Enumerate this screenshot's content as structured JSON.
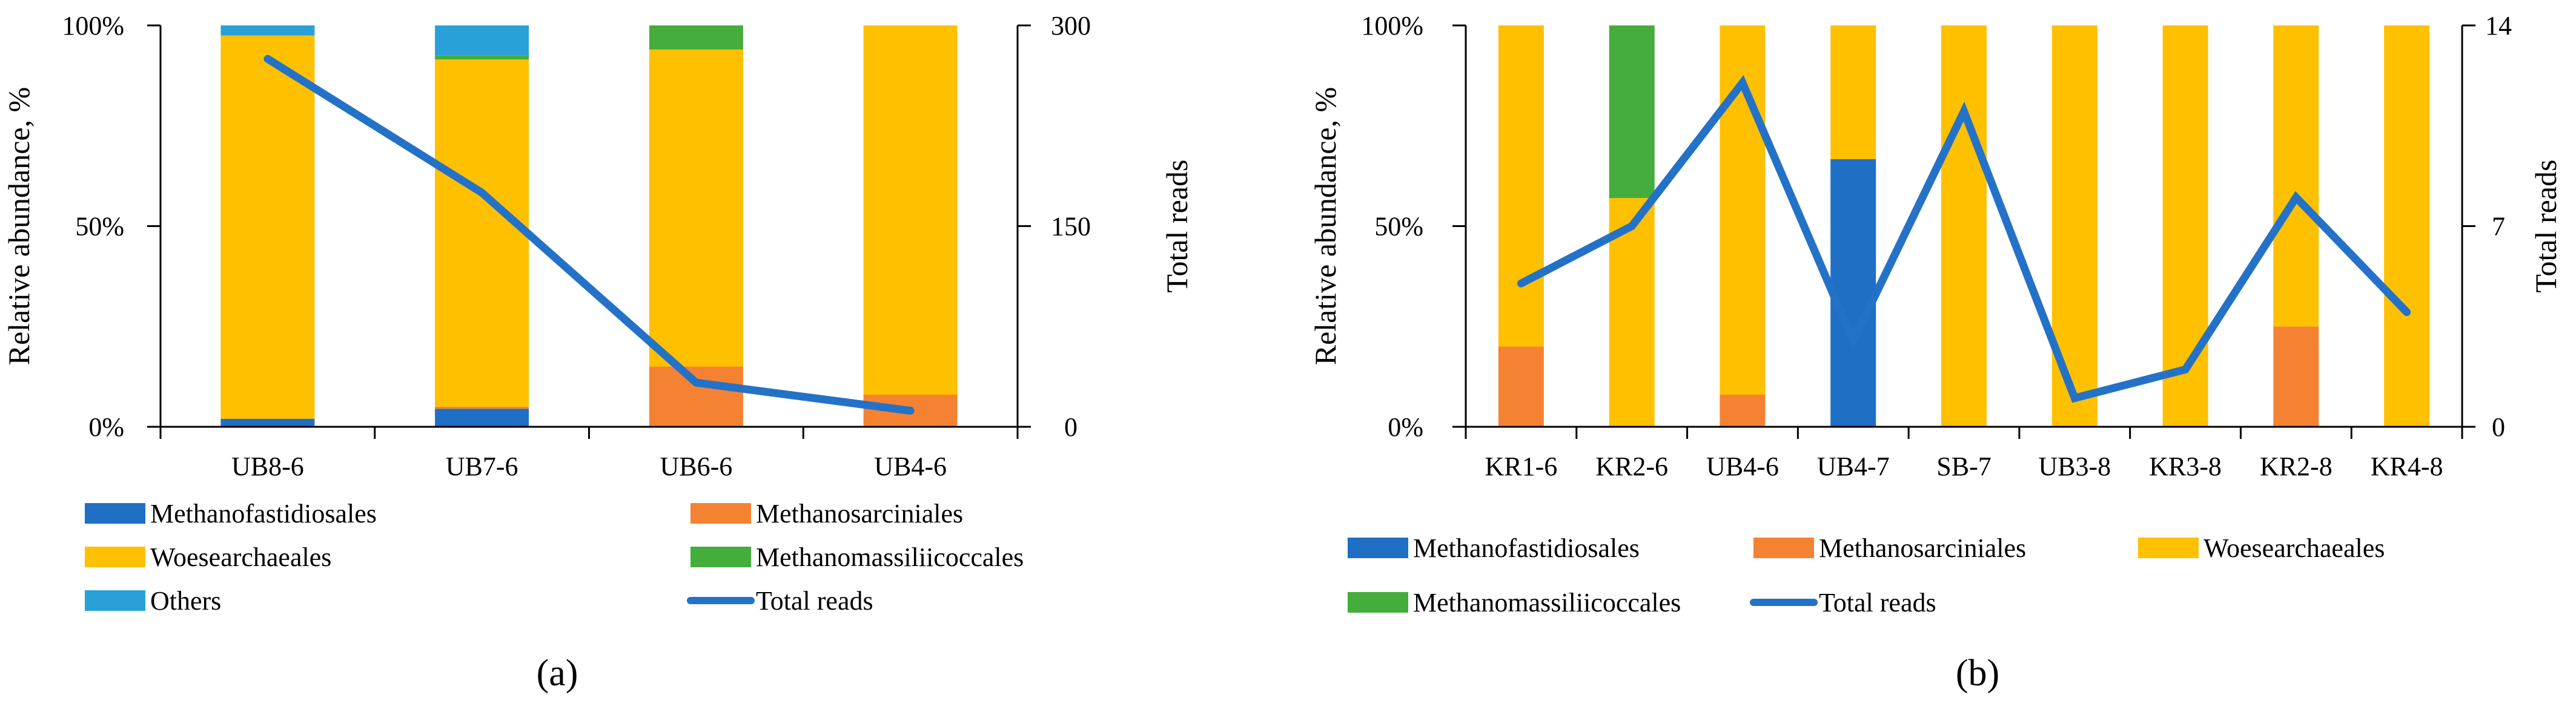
{
  "colors": {
    "Methanofastidiosales": "#1f6fc5",
    "Methanosarciniales": "#f58232",
    "Woesearchaeales": "#ffc000",
    "Methanomassiliicoccales": "#44ad3c",
    "Others": "#2aa0d8",
    "Total reads": "#2472c8"
  },
  "chart_data": [
    {
      "type": "bar",
      "stacked": true,
      "caption": "(a)",
      "categories": [
        "UB8-6",
        "UB7-6",
        "UB6-6",
        "UB4-6"
      ],
      "series": [
        {
          "name": "Methanofastidiosales",
          "values": [
            2,
            4.5,
            0,
            0
          ]
        },
        {
          "name": "Methanosarciniales",
          "values": [
            0,
            0.5,
            15,
            8
          ]
        },
        {
          "name": "Woesearchaeales",
          "values": [
            95.5,
            86.5,
            79,
            92
          ]
        },
        {
          "name": "Methanomassiliicoccales",
          "values": [
            0,
            1,
            6,
            0
          ]
        },
        {
          "name": "Others",
          "values": [
            2.5,
            7.5,
            0,
            0
          ]
        }
      ],
      "line": {
        "name": "Total reads",
        "values": [
          275,
          175,
          33,
          12
        ]
      },
      "ylabel": "Relative abundance, %",
      "ylabel_right": "Total reads",
      "y_ticks": [
        "0%",
        "50%",
        "100%"
      ],
      "y_right_ticks": [
        "0",
        "150",
        "300"
      ],
      "ylim": [
        0,
        100
      ],
      "ylim_right": [
        0,
        300
      ],
      "legend_position": "bottom",
      "grid": false
    },
    {
      "type": "bar",
      "stacked": true,
      "caption": "(b)",
      "categories": [
        "KR1-6",
        "KR2-6",
        "UB4-6",
        "UB4-7",
        "SB-7",
        "UB3-8",
        "KR3-8",
        "KR2-8",
        "KR4-8"
      ],
      "series": [
        {
          "name": "Methanofastidiosales",
          "values": [
            0,
            0,
            0,
            66.7,
            0,
            0,
            0,
            0,
            0
          ]
        },
        {
          "name": "Methanosarciniales",
          "values": [
            20,
            0,
            8,
            0,
            0,
            0,
            0,
            25,
            0
          ]
        },
        {
          "name": "Woesearchaeales",
          "values": [
            80,
            57,
            92,
            33.3,
            100,
            100,
            100,
            75,
            100
          ]
        },
        {
          "name": "Methanomassiliicoccales",
          "values": [
            0,
            43,
            0,
            0,
            0,
            0,
            0,
            0,
            0
          ]
        }
      ],
      "line": {
        "name": "Total reads",
        "values": [
          5,
          7,
          12,
          3,
          11,
          1,
          2,
          8,
          4
        ]
      },
      "ylabel": "Relative abundance, %",
      "ylabel_right": "Total reads",
      "y_ticks": [
        "0%",
        "50%",
        "100%"
      ],
      "y_right_ticks": [
        "0",
        "7",
        "14"
      ],
      "ylim": [
        0,
        100
      ],
      "ylim_right": [
        0,
        14
      ],
      "legend_position": "bottom",
      "grid": false
    }
  ]
}
